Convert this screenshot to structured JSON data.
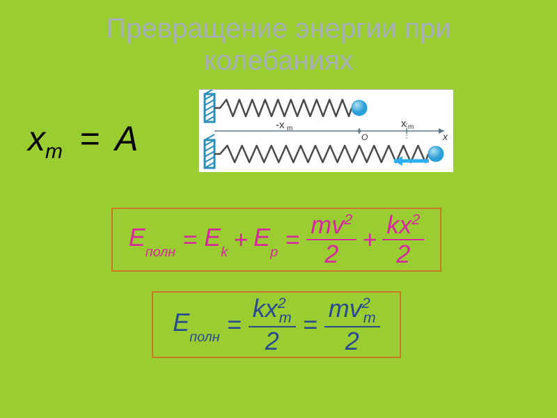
{
  "slide": {
    "background_color": "#9acd32",
    "title": {
      "text_line1": "Превращение энергии при",
      "text_line2": "колебаниях",
      "color": "#a8b0b8",
      "fontsize": 40
    },
    "eq_amplitude": {
      "lhs_x": "x",
      "lhs_sub": "m",
      "eq": "=",
      "rhs": "A",
      "color": "#000000",
      "fontsize": 50
    },
    "spring_diagram": {
      "background": "#ffffff",
      "wall_color": "#2a8fb8",
      "spring_color": "#4a4a4a",
      "ball_color": "#2a9fd8",
      "ball_highlight": "#b3e0f2",
      "axis_color": "#5a7a8a",
      "arrow_color": "#2ab0f0",
      "label_neg": "-x",
      "label_neg_sub": "m",
      "label_pos": "x",
      "label_pos_sub": "m",
      "label_origin": "O",
      "label_axis": "x",
      "label_color": "#333333",
      "spring1_coils": 10,
      "spring2_coils": 14
    },
    "formula1": {
      "border_color": "#c87820",
      "text_color": "#d6299e",
      "fontsize": 36,
      "E": "E",
      "sub_poln": "полн",
      "Ek": "E",
      "sub_k": "k",
      "Ep": "E",
      "sub_p": "p",
      "frac1_num": "mv",
      "frac1_sup": "2",
      "frac1_den": "2",
      "frac2_num": "kx",
      "frac2_sup": "2",
      "frac2_den": "2"
    },
    "formula2": {
      "border_color": "#c87820",
      "text_color": "#2a4a8f",
      "fontsize": 36,
      "E": "E",
      "sub_poln": "полн",
      "f1_num_a": "kx",
      "f1_sub": "m",
      "f1_sup": "2",
      "f1_den": "2",
      "f2_num_a": "mv",
      "f2_sub": "m",
      "f2_sup": "2",
      "f2_den": "2"
    }
  }
}
